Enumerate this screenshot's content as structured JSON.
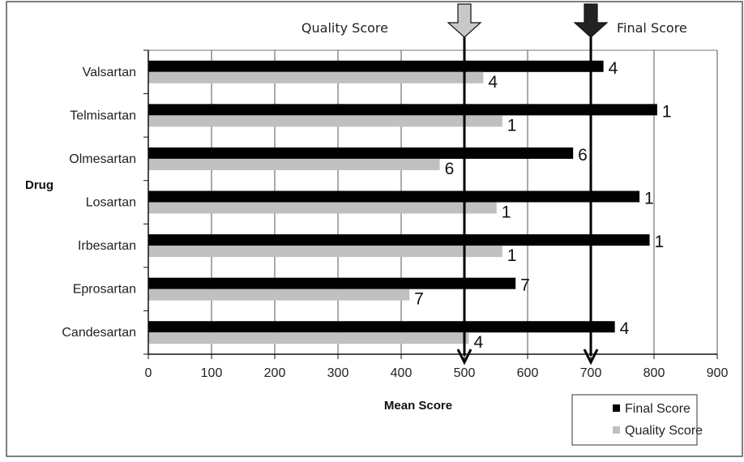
{
  "chart_data": {
    "type": "bar",
    "orientation": "horizontal",
    "categories": [
      "Valsartan",
      "Telmisartan",
      "Olmesartan",
      "Losartan",
      "Irbesartan",
      "Eprosartan",
      "Candesartan"
    ],
    "series": [
      {
        "name": "Final Score",
        "color": "#000000",
        "values": [
          720,
          805,
          672,
          777,
          793,
          581,
          738
        ],
        "rank_labels": [
          "4",
          "1",
          "6",
          "1",
          "1",
          "7",
          "4"
        ]
      },
      {
        "name": "Quality Score",
        "color": "#c0c0c0",
        "values": [
          530,
          560,
          461,
          551,
          560,
          413,
          507
        ],
        "rank_labels": [
          "4",
          "1",
          "6",
          "1",
          "1",
          "7",
          "4"
        ]
      }
    ],
    "xlabel": "Mean Score",
    "ylabel": "Drug",
    "xlim": [
      0,
      900
    ],
    "xticks": [
      "0",
      "100",
      "200",
      "300",
      "400",
      "500",
      "600",
      "700",
      "800",
      "900"
    ],
    "grid": "vertical",
    "legend_placement": "bottom-right",
    "annotations": [
      {
        "label": "Quality Score",
        "x": 500,
        "arrow_fill": "#c8c8c8"
      },
      {
        "label": "Final Score",
        "x": 700,
        "arrow_fill": "#222222"
      }
    ]
  }
}
